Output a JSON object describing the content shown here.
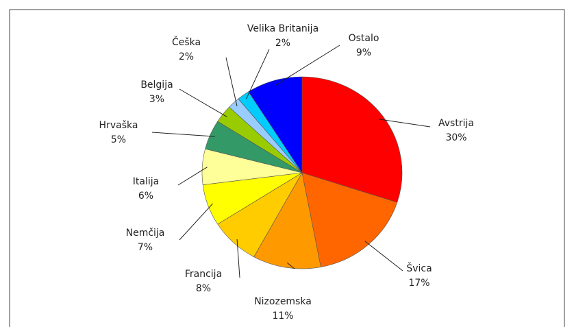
{
  "chart_data": {
    "type": "pie",
    "categories": [
      "Avstrija",
      "Švica",
      "Nizozemska",
      "Francija",
      "Nemčija",
      "Italija",
      "Hrvaška",
      "Belgija",
      "Češka",
      "Velika Britanija",
      "Ostalo"
    ],
    "values": [
      30,
      17,
      11,
      8,
      7,
      6,
      5,
      3,
      2,
      2,
      9
    ],
    "value_labels": [
      "30%",
      "17%",
      "11%",
      "8%",
      "7%",
      "6%",
      "5%",
      "3%",
      "2%",
      "2%",
      "9%"
    ],
    "colors": [
      "#ff0000",
      "#ff6600",
      "#ff9900",
      "#ffcc00",
      "#ffff00",
      "#ffff99",
      "#339966",
      "#99cc00",
      "#99ccff",
      "#00ccff",
      "#0000ff"
    ]
  }
}
